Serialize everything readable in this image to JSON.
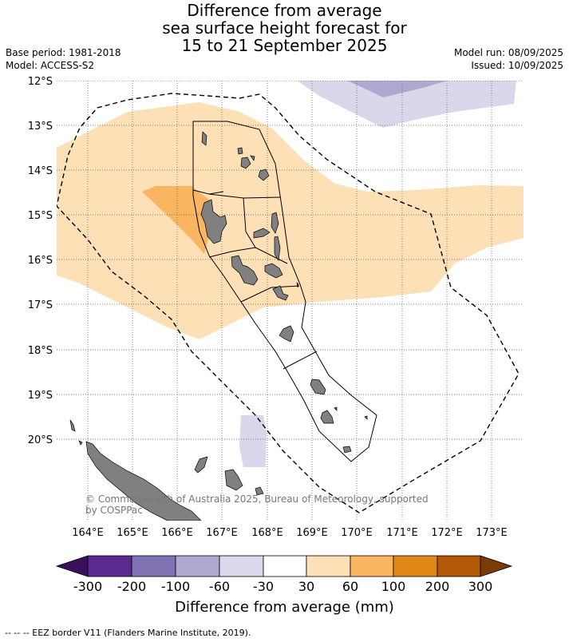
{
  "title": {
    "line1": "Difference from average",
    "line2": "sea surface height forecast for",
    "line3": "15 to 21 September 2025"
  },
  "meta": {
    "base_period": "Base period: 1981-2018",
    "model": "Model: ACCESS-S2",
    "model_run": "Model run: 08/09/2025",
    "issued": "Issued: 10/09/2025"
  },
  "map": {
    "lat_labels": [
      "12°S",
      "13°S",
      "14°S",
      "15°S",
      "16°S",
      "17°S",
      "18°S",
      "19°S",
      "20°S"
    ],
    "lon_labels": [
      "164°E",
      "165°E",
      "166°E",
      "167°E",
      "168°E",
      "169°E",
      "170°E",
      "171°E",
      "172°E",
      "173°E"
    ],
    "copyright": "© Commonwealth of Australia 2025, Bureau of Meteorology, supported by COSPPac",
    "colors": {
      "ocean_30_60": "#fde0b6",
      "ocean_60_100": "#f9b560",
      "ocean_neg_30_60": "#d8d8ea",
      "ocean_neg_60_100": "#b0a8d0",
      "land": "#808080"
    }
  },
  "colorbar": {
    "ticks": [
      "-300",
      "-200",
      "-100",
      "-60",
      "-30",
      "30",
      "60",
      "100",
      "200",
      "300"
    ],
    "colors": [
      "#3b0f5c",
      "#5b2a8f",
      "#8072b2",
      "#afa8d1",
      "#d9d9eb",
      "#ffffff",
      "#fde0b6",
      "#f9b560",
      "#e08817",
      "#b35806",
      "#7a3b06"
    ],
    "title": "Difference from average (mm)"
  },
  "footer": {
    "legend": "--  --  -- EEZ border V11 (Flanders Marine Institute, 2019)."
  }
}
